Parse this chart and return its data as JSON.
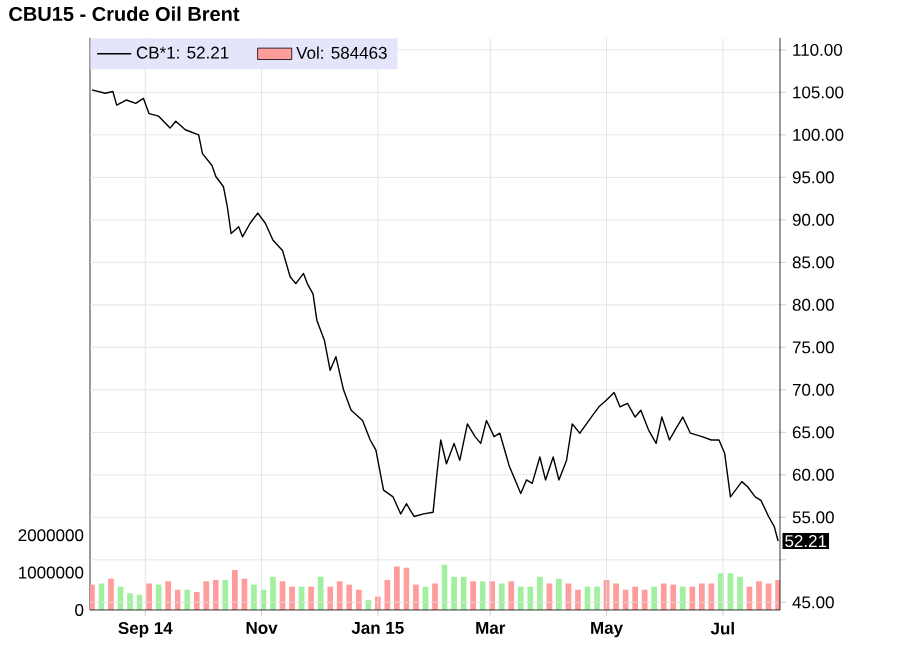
{
  "chart_data": {
    "type": "line",
    "title": "CBU15 - Crude Oil Brent",
    "xlim": [
      "2014-08-03",
      "2015-07-31"
    ],
    "xticks": [
      {
        "value": "2014-09-01",
        "label": "Sep 14"
      },
      {
        "value": "2014-11-01",
        "label": "Nov"
      },
      {
        "value": "2015-01-01",
        "label": "Jan 15"
      },
      {
        "value": "2015-03-01",
        "label": "Mar"
      },
      {
        "value": "2015-05-01",
        "label": "May"
      },
      {
        "value": "2015-07-01",
        "label": "Jul"
      }
    ],
    "ylim": [
      44.1,
      111.4
    ],
    "yticks": [
      {
        "value": 45,
        "label": "45.00"
      },
      {
        "value": 50,
        "label": null
      },
      {
        "value": 55,
        "label": "55.00"
      },
      {
        "value": 60,
        "label": "60.00"
      },
      {
        "value": 65,
        "label": "65.00"
      },
      {
        "value": 70,
        "label": "70.00"
      },
      {
        "value": 75,
        "label": "75.00"
      },
      {
        "value": 80,
        "label": "80.00"
      },
      {
        "value": 85,
        "label": "85.00"
      },
      {
        "value": 90,
        "label": "90.00"
      },
      {
        "value": 95,
        "label": "95.00"
      },
      {
        "value": 100,
        "label": "100.00"
      },
      {
        "value": 105,
        "label": "105.00"
      },
      {
        "value": 110,
        "label": "110.00"
      }
    ],
    "y2lim": [
      0,
      15300000
    ],
    "y2ticks": [
      0,
      1000000,
      2000000
    ],
    "grid": true,
    "legend": "top left",
    "annotations": [
      {
        "text": "52.21",
        "x": "2015-07-30",
        "y": 52.21
      }
    ],
    "series": [
      {
        "name": "Vol: 584463",
        "type": "bar",
        "axis": "y2",
        "color": "#ff9c9c",
        "x": [
          "2014-08-04",
          "2014-08-09",
          "2014-08-14",
          "2014-08-19",
          "2014-08-24",
          "2014-08-29",
          "2014-09-03",
          "2014-09-08",
          "2014-09-13",
          "2014-09-18",
          "2014-09-23",
          "2014-09-28",
          "2014-10-03",
          "2014-10-08",
          "2014-10-13",
          "2014-10-18",
          "2014-10-23",
          "2014-10-28",
          "2014-11-02",
          "2014-11-07",
          "2014-11-12",
          "2014-11-17",
          "2014-11-22",
          "2014-11-27",
          "2014-12-02",
          "2014-12-07",
          "2014-12-12",
          "2014-12-17",
          "2014-12-22",
          "2014-12-27",
          "2015-01-01",
          "2015-01-06",
          "2015-01-11",
          "2015-01-16",
          "2015-01-21",
          "2015-01-26",
          "2015-01-31",
          "2015-02-05",
          "2015-02-10",
          "2015-02-15",
          "2015-02-20",
          "2015-02-25",
          "2015-03-02",
          "2015-03-07",
          "2015-03-12",
          "2015-03-17",
          "2015-03-22",
          "2015-03-27",
          "2015-04-01",
          "2015-04-06",
          "2015-04-11",
          "2015-04-16",
          "2015-04-21",
          "2015-04-26",
          "2015-05-01",
          "2015-05-06",
          "2015-05-11",
          "2015-05-16",
          "2015-05-21",
          "2015-05-26",
          "2015-05-31",
          "2015-06-05",
          "2015-06-10",
          "2015-06-15",
          "2015-06-20",
          "2015-06-25",
          "2015-06-30",
          "2015-07-05",
          "2015-07-10",
          "2015-07-15",
          "2015-07-20",
          "2015-07-25",
          "2015-07-30"
        ],
        "values": [
          680000,
          710000,
          840000,
          630000,
          450000,
          410000,
          710000,
          680000,
          770000,
          540000,
          540000,
          480000,
          770000,
          800000,
          800000,
          1070000,
          840000,
          680000,
          540000,
          890000,
          770000,
          630000,
          630000,
          630000,
          890000,
          630000,
          770000,
          680000,
          540000,
          270000,
          360000,
          800000,
          1160000,
          1130000,
          680000,
          630000,
          710000,
          1210000,
          890000,
          890000,
          770000,
          770000,
          770000,
          710000,
          770000,
          630000,
          630000,
          890000,
          710000,
          840000,
          710000,
          540000,
          630000,
          630000,
          800000,
          710000,
          540000,
          630000,
          540000,
          630000,
          710000,
          680000,
          630000,
          630000,
          710000,
          710000,
          980000,
          980000,
          890000,
          630000,
          770000,
          710000,
          800000
        ],
        "colors": [
          "#ff9c9c",
          "#a0f0a0",
          "#ff9c9c",
          "#a0f0a0",
          "#a0f0a0",
          "#a0f0a0",
          "#ff9c9c",
          "#a0f0a0",
          "#ff9c9c",
          "#ff9c9c",
          "#a0f0a0",
          "#ff9c9c",
          "#ff9c9c",
          "#ff9c9c",
          "#a0f0a0",
          "#ff9c9c",
          "#ff9c9c",
          "#a0f0a0",
          "#a0f0a0",
          "#a0f0a0",
          "#ff9c9c",
          "#ff9c9c",
          "#a0f0a0",
          "#ff9c9c",
          "#a0f0a0",
          "#ff9c9c",
          "#ff9c9c",
          "#ff9c9c",
          "#ff9c9c",
          "#a0f0a0",
          "#ff9c9c",
          "#ff9c9c",
          "#ff9c9c",
          "#ff9c9c",
          "#ff9c9c",
          "#a0f0a0",
          "#ff9c9c",
          "#a0f0a0",
          "#a0f0a0",
          "#a0f0a0",
          "#ff9c9c",
          "#a0f0a0",
          "#ff9c9c",
          "#a0f0a0",
          "#ff9c9c",
          "#a0f0a0",
          "#a0f0a0",
          "#a0f0a0",
          "#ff9c9c",
          "#a0f0a0",
          "#ff9c9c",
          "#ff9c9c",
          "#a0f0a0",
          "#a0f0a0",
          "#ff9c9c",
          "#ff9c9c",
          "#ff9c9c",
          "#ff9c9c",
          "#ff9c9c",
          "#a0f0a0",
          "#ff9c9c",
          "#ff9c9c",
          "#a0f0a0",
          "#ff9c9c",
          "#ff9c9c",
          "#ff9c9c",
          "#a0f0a0",
          "#a0f0a0",
          "#a0f0a0",
          "#ff9c9c",
          "#ff9c9c",
          "#ff9c9c",
          "#ff9c9c"
        ]
      },
      {
        "name": "CB*1: 52.21",
        "color": "#000000",
        "x": [
          "2014-08-04",
          "2014-08-11",
          "2014-08-15",
          "2014-08-17",
          "2014-08-22",
          "2014-08-27",
          "2014-08-31",
          "2014-09-03",
          "2014-09-08",
          "2014-09-14",
          "2014-09-17",
          "2014-09-22",
          "2014-09-29",
          "2014-10-01",
          "2014-10-06",
          "2014-10-08",
          "2014-10-12",
          "2014-10-14",
          "2014-10-16",
          "2014-10-20",
          "2014-10-22",
          "2014-10-26",
          "2014-10-30",
          "2014-11-03",
          "2014-11-07",
          "2014-11-12",
          "2014-11-16",
          "2014-11-19",
          "2014-11-23",
          "2014-11-25",
          "2014-11-28",
          "2014-11-30",
          "2014-12-04",
          "2014-12-07",
          "2014-12-10",
          "2014-12-14",
          "2014-12-18",
          "2014-12-24",
          "2014-12-28",
          "2014-12-31",
          "2015-01-04",
          "2015-01-09",
          "2015-01-13",
          "2015-01-16",
          "2015-01-20",
          "2015-01-25",
          "2015-01-30",
          "2015-02-01",
          "2015-02-03",
          "2015-02-06",
          "2015-02-10",
          "2015-02-13",
          "2015-02-17",
          "2015-02-21",
          "2015-02-24",
          "2015-02-27",
          "2015-03-03",
          "2015-03-06",
          "2015-03-11",
          "2015-03-14",
          "2015-03-17",
          "2015-03-20",
          "2015-03-23",
          "2015-03-27",
          "2015-03-30",
          "2015-04-03",
          "2015-04-06",
          "2015-04-10",
          "2015-04-13",
          "2015-04-17",
          "2015-04-23",
          "2015-04-27",
          "2015-05-01",
          "2015-05-05",
          "2015-05-08",
          "2015-05-12",
          "2015-05-16",
          "2015-05-19",
          "2015-05-23",
          "2015-05-27",
          "2015-05-30",
          "2015-06-03",
          "2015-06-06",
          "2015-06-10",
          "2015-06-14",
          "2015-06-20",
          "2015-06-25",
          "2015-06-29",
          "2015-07-02",
          "2015-07-05",
          "2015-07-11",
          "2015-07-14",
          "2015-07-18",
          "2015-07-21",
          "2015-07-25",
          "2015-07-28",
          "2015-07-30"
        ],
        "values": [
          105.3,
          104.9,
          105.1,
          103.5,
          104.1,
          103.7,
          104.3,
          102.5,
          102.2,
          100.8,
          101.6,
          100.6,
          100.0,
          97.8,
          96.4,
          95.1,
          93.9,
          91.6,
          88.4,
          89.2,
          88.0,
          89.6,
          90.8,
          89.6,
          87.6,
          86.4,
          83.3,
          82.5,
          83.7,
          82.5,
          81.3,
          78.2,
          75.8,
          72.3,
          73.9,
          70.0,
          67.6,
          66.4,
          64.1,
          62.9,
          58.2,
          57.4,
          55.4,
          56.6,
          55.1,
          55.4,
          55.6,
          60.1,
          64.1,
          61.3,
          63.7,
          61.7,
          66.0,
          64.5,
          63.7,
          66.4,
          64.5,
          64.9,
          61.0,
          59.4,
          57.8,
          59.4,
          59.0,
          62.1,
          59.4,
          62.1,
          59.4,
          61.7,
          66.0,
          64.9,
          66.8,
          68.0,
          68.8,
          69.7,
          68.0,
          68.4,
          66.8,
          67.6,
          65.3,
          63.7,
          66.8,
          64.1,
          65.3,
          66.8,
          64.9,
          64.5,
          64.1,
          64.1,
          62.5,
          57.4,
          59.2,
          58.6,
          57.4,
          57.0,
          55.1,
          53.9,
          52.21
        ]
      }
    ]
  }
}
